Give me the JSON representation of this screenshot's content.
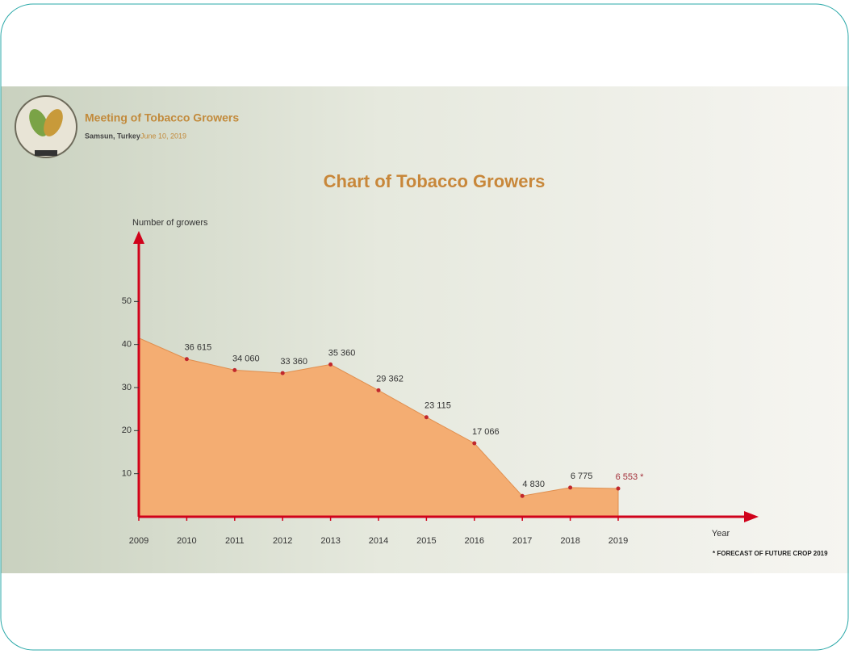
{
  "header": {
    "title": "Meeting of Tobacco Growers",
    "location": "Samsun, Turkey",
    "date": "June 10, 2019"
  },
  "chart_data": {
    "type": "area",
    "title": "Chart of Tobacco Growers",
    "y_label": "Number of growers",
    "x_label": "Year",
    "footnote": "* FORECAST OF FUTURE CROP 2019",
    "categories": [
      "2009",
      "2010",
      "2011",
      "2012",
      "2013",
      "2014",
      "2015",
      "2016",
      "2017",
      "2018",
      "2019"
    ],
    "values": [
      41.5,
      36.615,
      34.06,
      33.36,
      35.36,
      29.362,
      23.115,
      17.066,
      4.83,
      6.775,
      6.553
    ],
    "value_labels": [
      null,
      "36 615",
      "34 060",
      "33 360",
      "35 360",
      "29 362",
      "23 115",
      "17 066",
      "4 830",
      "6 775",
      "6 553 *"
    ],
    "color": "#f4ad72",
    "ylim": [
      0,
      66
    ],
    "yticks": [
      10,
      20,
      30,
      40,
      50
    ],
    "grid": false
  }
}
